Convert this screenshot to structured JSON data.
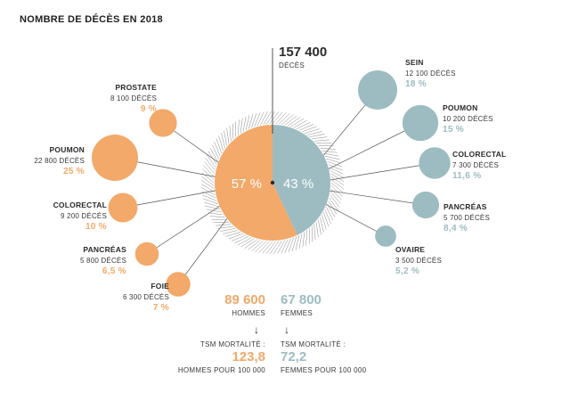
{
  "title": "NOMBRE DE DÉCÈS EN 2018",
  "total": {
    "value": "157 400",
    "label": "DÉCÈS"
  },
  "colors": {
    "men": "#f2a96a",
    "women": "#9dbcc1",
    "text": "#2b2b2b",
    "line": "#555555"
  },
  "chart_data": {
    "type": "pie",
    "title": "NOMBRE DE DÉCÈS EN 2018",
    "slices": [
      {
        "label": "57 %",
        "value": 57,
        "color": "#f2a96a"
      },
      {
        "label": "43 %",
        "value": 43,
        "color": "#9dbcc1"
      }
    ]
  },
  "bubbles": {
    "men": [
      {
        "name": "PROSTATE",
        "deaths": "8 100 DÉCÈS",
        "pct": "9 %",
        "value": 9
      },
      {
        "name": "POUMON",
        "deaths": "22 800 DÉCÈS",
        "pct": "25 %",
        "value": 25
      },
      {
        "name": "COLORECTAL",
        "deaths": "9 200 DÉCÈS",
        "pct": "10 %",
        "value": 10
      },
      {
        "name": "PANCRÉAS",
        "deaths": "5 800 DÉCÈS",
        "pct": "6,5 %",
        "value": 6.5
      },
      {
        "name": "FOIE",
        "deaths": "6 300 DÉCÈS",
        "pct": "7 %",
        "value": 7
      }
    ],
    "women": [
      {
        "name": "SEIN",
        "deaths": "12 100 DÉCÈS",
        "pct": "18 %",
        "value": 18
      },
      {
        "name": "POUMON",
        "deaths": "10 200 DÉCÈS",
        "pct": "15 %",
        "value": 15
      },
      {
        "name": "COLORECTAL",
        "deaths": "7 300 DÉCÈS",
        "pct": "11,6 %",
        "value": 11.6
      },
      {
        "name": "PANCRÉAS",
        "deaths": "5 700 DÉCÈS",
        "pct": "8,4 %",
        "value": 8.4
      },
      {
        "name": "OVAIRE",
        "deaths": "3 500 DÉCÈS",
        "pct": "5,2 %",
        "value": 5.2
      }
    ]
  },
  "summary": {
    "men": {
      "count": "89 600",
      "label": "HOMMES",
      "tsm_label": "TSM MORTALITÉ :",
      "tsm_value": "123,8",
      "tsm_unit": "HOMMES POUR 100 000"
    },
    "women": {
      "count": "67 800",
      "label": "FEMMES",
      "tsm_label": "TSM MORTALITÉ :",
      "tsm_value": "72,2",
      "tsm_unit": "FEMMES POUR 100 000"
    }
  },
  "arrow_glyph": "↓"
}
